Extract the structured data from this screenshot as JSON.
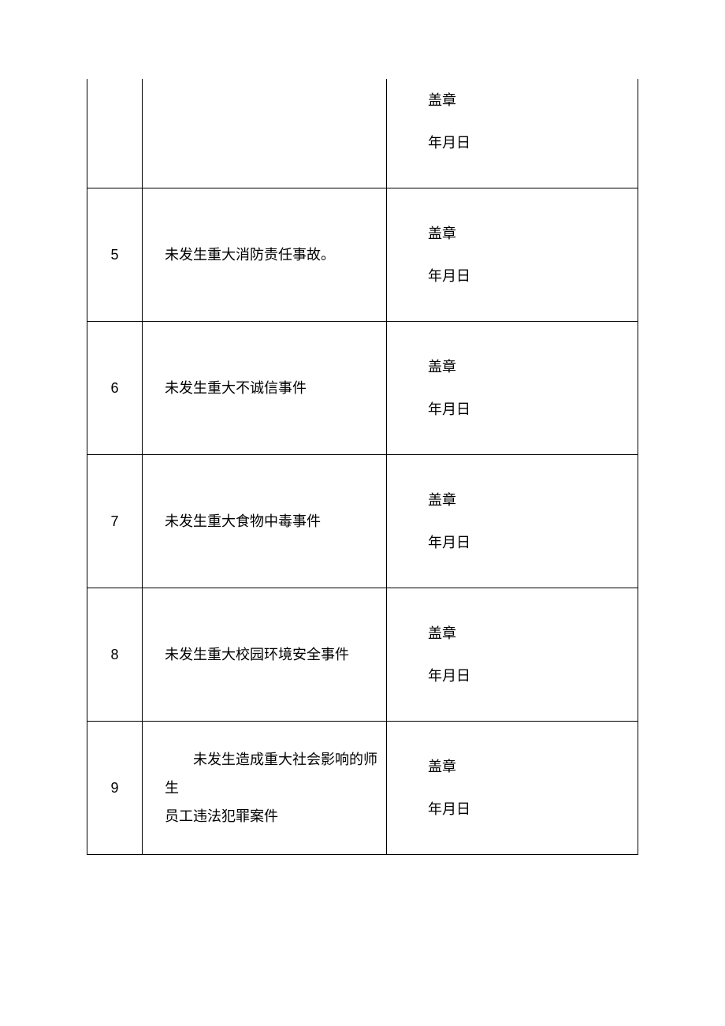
{
  "table": {
    "stamp_label": "盖章",
    "date_label": "年月日",
    "rows": [
      {
        "index": "",
        "description": "",
        "first_row": true
      },
      {
        "index": "5",
        "description": "未发生重大消防责任事故。"
      },
      {
        "index": "6",
        "description": "未发生重大不诚信事件"
      },
      {
        "index": "7",
        "description": "未发生重大食物中毒事件"
      },
      {
        "index": "8",
        "description": "未发生重大校园环境安全事件"
      },
      {
        "index": "9",
        "description_line1": "未发生造成重大社会影响的师生",
        "description_line2": "员工违法犯罪案件",
        "multiline": true
      }
    ]
  },
  "styling": {
    "background_color": "#ffffff",
    "border_color": "#000000",
    "text_color": "#000000",
    "font_size": 18,
    "font_family": "SimSun"
  }
}
